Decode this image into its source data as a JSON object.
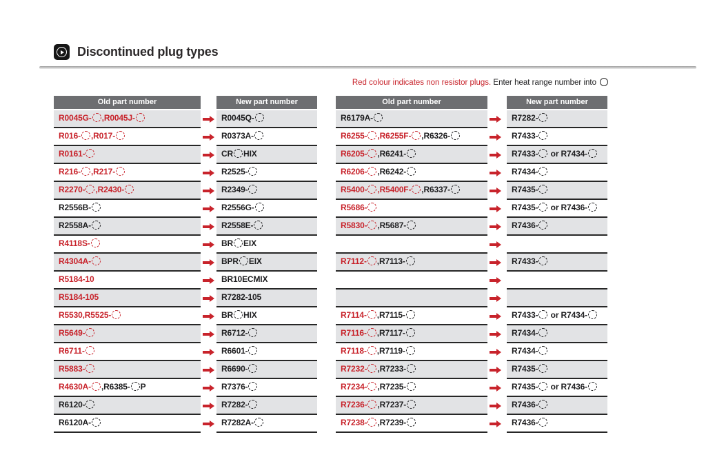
{
  "header": {
    "title": "Discontinued plug types"
  },
  "note": {
    "red_text": "Red colour indicates non resistor plugs.",
    "black_text": " Enter heat range number into",
    "circle_icon": "heat-range-circle"
  },
  "columns": {
    "old_label": "Old part number",
    "new_label": "New part number"
  },
  "colors": {
    "non_resistor_red": "#c8232b",
    "header_bg": "#6d6e71",
    "row_alt_bg": "#e2e3e5",
    "rule": "#262626"
  },
  "icons": {
    "title_icon": "play-icon",
    "arrow_icon": "right-arrow-icon",
    "circle_icon": "heat-range-circle-icon"
  },
  "tables": [
    {
      "rows": [
        {
          "old": [
            {
              "text": "R0045G-",
              "color": "red",
              "circle": true
            },
            {
              "text": ",R0045J-",
              "color": "red",
              "circle": true
            }
          ],
          "new": [
            {
              "text": "R0045Q-",
              "color": "black",
              "circle": true
            }
          ]
        },
        {
          "old": [
            {
              "text": "R016-",
              "color": "red",
              "circle": true
            },
            {
              "text": ",R017-",
              "color": "red",
              "circle": true
            }
          ],
          "new": [
            {
              "text": "R0373A-",
              "color": "black",
              "circle": true
            }
          ]
        },
        {
          "old": [
            {
              "text": "R0161-",
              "color": "red",
              "circle": true
            }
          ],
          "new": [
            {
              "text": "CR",
              "color": "black",
              "circle": true
            },
            {
              "text": "HIX",
              "color": "black",
              "circle": false
            }
          ]
        },
        {
          "old": [
            {
              "text": "R216-",
              "color": "red",
              "circle": true
            },
            {
              "text": ",R217-",
              "color": "red",
              "circle": true
            }
          ],
          "new": [
            {
              "text": "R2525-",
              "color": "black",
              "circle": true
            }
          ]
        },
        {
          "old": [
            {
              "text": "R2270-",
              "color": "red",
              "circle": true
            },
            {
              "text": ",R2430-",
              "color": "red",
              "circle": true
            }
          ],
          "new": [
            {
              "text": "R2349-",
              "color": "black",
              "circle": true
            }
          ]
        },
        {
          "old": [
            {
              "text": "R2556B-",
              "color": "black",
              "circle": true
            }
          ],
          "new": [
            {
              "text": "R2556G-",
              "color": "black",
              "circle": true
            }
          ]
        },
        {
          "old": [
            {
              "text": "R2558A-",
              "color": "black",
              "circle": true
            }
          ],
          "new": [
            {
              "text": "R2558E-",
              "color": "black",
              "circle": true
            }
          ]
        },
        {
          "old": [
            {
              "text": "R4118S-",
              "color": "red",
              "circle": true
            }
          ],
          "new": [
            {
              "text": "BR",
              "color": "black",
              "circle": true
            },
            {
              "text": "EIX",
              "color": "black",
              "circle": false
            }
          ]
        },
        {
          "old": [
            {
              "text": "R4304A-",
              "color": "red",
              "circle": true
            }
          ],
          "new": [
            {
              "text": "BPR",
              "color": "black",
              "circle": true
            },
            {
              "text": "EIX",
              "color": "black",
              "circle": false
            }
          ]
        },
        {
          "old": [
            {
              "text": "R5184-10",
              "color": "red",
              "circle": false
            }
          ],
          "new": [
            {
              "text": "BR10ECMIX",
              "color": "black",
              "circle": false
            }
          ]
        },
        {
          "old": [
            {
              "text": "R5184-105",
              "color": "red",
              "circle": false
            }
          ],
          "new": [
            {
              "text": "R7282-105",
              "color": "black",
              "circle": false
            }
          ]
        },
        {
          "old": [
            {
              "text": "R5530,R5525-",
              "color": "red",
              "circle": true
            }
          ],
          "new": [
            {
              "text": "BR",
              "color": "black",
              "circle": true
            },
            {
              "text": "HIX",
              "color": "black",
              "circle": false
            }
          ]
        },
        {
          "old": [
            {
              "text": "R5649-",
              "color": "red",
              "circle": true
            }
          ],
          "new": [
            {
              "text": "R6712-",
              "color": "black",
              "circle": true
            }
          ]
        },
        {
          "old": [
            {
              "text": "R6711-",
              "color": "red",
              "circle": true
            }
          ],
          "new": [
            {
              "text": "R6601-",
              "color": "black",
              "circle": true
            }
          ]
        },
        {
          "old": [
            {
              "text": "R5883-",
              "color": "red",
              "circle": true
            }
          ],
          "new": [
            {
              "text": "R6690-",
              "color": "black",
              "circle": true
            }
          ]
        },
        {
          "old": [
            {
              "text": "R4630A-",
              "color": "red",
              "circle": true
            },
            {
              "text": ",R6385-",
              "color": "black",
              "circle": true
            },
            {
              "text": "P",
              "color": "black",
              "circle": false
            }
          ],
          "new": [
            {
              "text": "R7376-",
              "color": "black",
              "circle": true
            }
          ]
        },
        {
          "old": [
            {
              "text": "R6120-",
              "color": "black",
              "circle": true
            }
          ],
          "new": [
            {
              "text": "R7282-",
              "color": "black",
              "circle": true
            }
          ]
        },
        {
          "old": [
            {
              "text": "R6120A-",
              "color": "black",
              "circle": true
            }
          ],
          "new": [
            {
              "text": "R7282A-",
              "color": "black",
              "circle": true
            }
          ]
        }
      ]
    },
    {
      "rows": [
        {
          "old": [
            {
              "text": "R6179A-",
              "color": "black",
              "circle": true
            }
          ],
          "new": [
            {
              "text": "R7282-",
              "color": "black",
              "circle": true
            }
          ]
        },
        {
          "old": [
            {
              "text": "R6255-",
              "color": "red",
              "circle": true
            },
            {
              "text": ",R6255F-",
              "color": "red",
              "circle": true
            },
            {
              "text": ",R6326-",
              "color": "black",
              "circle": true
            }
          ],
          "new": [
            {
              "text": "R7433-",
              "color": "black",
              "circle": true
            }
          ]
        },
        {
          "old": [
            {
              "text": "R6205-",
              "color": "red",
              "circle": true
            },
            {
              "text": ",R6241-",
              "color": "black",
              "circle": true
            }
          ],
          "new": [
            {
              "text": "R7433-",
              "color": "black",
              "circle": true
            },
            {
              "text": " or R7434-",
              "color": "black",
              "circle": true
            }
          ]
        },
        {
          "old": [
            {
              "text": "R6206-",
              "color": "red",
              "circle": true
            },
            {
              "text": ",R6242-",
              "color": "black",
              "circle": true
            }
          ],
          "new": [
            {
              "text": "R7434-",
              "color": "black",
              "circle": true
            }
          ]
        },
        {
          "old": [
            {
              "text": "R5400-",
              "color": "red",
              "circle": true
            },
            {
              "text": ",R5400F-",
              "color": "red",
              "circle": true
            },
            {
              "text": ",R6337-",
              "color": "black",
              "circle": true
            }
          ],
          "new": [
            {
              "text": "R7435-",
              "color": "black",
              "circle": true
            }
          ]
        },
        {
          "old": [
            {
              "text": "R5686-",
              "color": "red",
              "circle": true
            }
          ],
          "new": [
            {
              "text": "R7435-",
              "color": "black",
              "circle": true
            },
            {
              "text": " or R7436-",
              "color": "black",
              "circle": true
            }
          ]
        },
        {
          "old": [
            {
              "text": "R5830-",
              "color": "red",
              "circle": true
            },
            {
              "text": ",R5687-",
              "color": "black",
              "circle": true
            }
          ],
          "new": [
            {
              "text": "R7436-",
              "color": "black",
              "circle": true
            }
          ]
        },
        {
          "old": [],
          "new": []
        },
        {
          "old": [
            {
              "text": "R7112-",
              "color": "red",
              "circle": true
            },
            {
              "text": ",R7113-",
              "color": "black",
              "circle": true
            }
          ],
          "new": [
            {
              "text": "R7433-",
              "color": "black",
              "circle": true
            }
          ]
        },
        {
          "old": [],
          "new": []
        },
        {
          "old": [],
          "new": []
        },
        {
          "old": [
            {
              "text": "R7114-",
              "color": "red",
              "circle": true
            },
            {
              "text": ",R7115-",
              "color": "black",
              "circle": true
            }
          ],
          "new": [
            {
              "text": "R7433-",
              "color": "black",
              "circle": true
            },
            {
              "text": " or R7434-",
              "color": "black",
              "circle": true
            }
          ]
        },
        {
          "old": [
            {
              "text": "R7116-",
              "color": "red",
              "circle": true
            },
            {
              "text": ",R7117-",
              "color": "black",
              "circle": true
            }
          ],
          "new": [
            {
              "text": "R7434-",
              "color": "black",
              "circle": true
            }
          ]
        },
        {
          "old": [
            {
              "text": "R7118-",
              "color": "red",
              "circle": true
            },
            {
              "text": ",R7119-",
              "color": "black",
              "circle": true
            }
          ],
          "new": [
            {
              "text": "R7434-",
              "color": "black",
              "circle": true
            }
          ]
        },
        {
          "old": [
            {
              "text": "R7232-",
              "color": "red",
              "circle": true
            },
            {
              "text": ",R7233-",
              "color": "black",
              "circle": true
            }
          ],
          "new": [
            {
              "text": "R7435-",
              "color": "black",
              "circle": true
            }
          ]
        },
        {
          "old": [
            {
              "text": "R7234-",
              "color": "red",
              "circle": true
            },
            {
              "text": ",R7235-",
              "color": "black",
              "circle": true
            }
          ],
          "new": [
            {
              "text": "R7435-",
              "color": "black",
              "circle": true
            },
            {
              "text": " or R7436-",
              "color": "black",
              "circle": true
            }
          ]
        },
        {
          "old": [
            {
              "text": "R7236-",
              "color": "red",
              "circle": true
            },
            {
              "text": ",R7237-",
              "color": "black",
              "circle": true
            }
          ],
          "new": [
            {
              "text": "R7436-",
              "color": "black",
              "circle": true
            }
          ]
        },
        {
          "old": [
            {
              "text": "R7238-",
              "color": "red",
              "circle": true
            },
            {
              "text": ",R7239-",
              "color": "black",
              "circle": true
            }
          ],
          "new": [
            {
              "text": "R7436-",
              "color": "black",
              "circle": true
            }
          ]
        }
      ]
    }
  ]
}
